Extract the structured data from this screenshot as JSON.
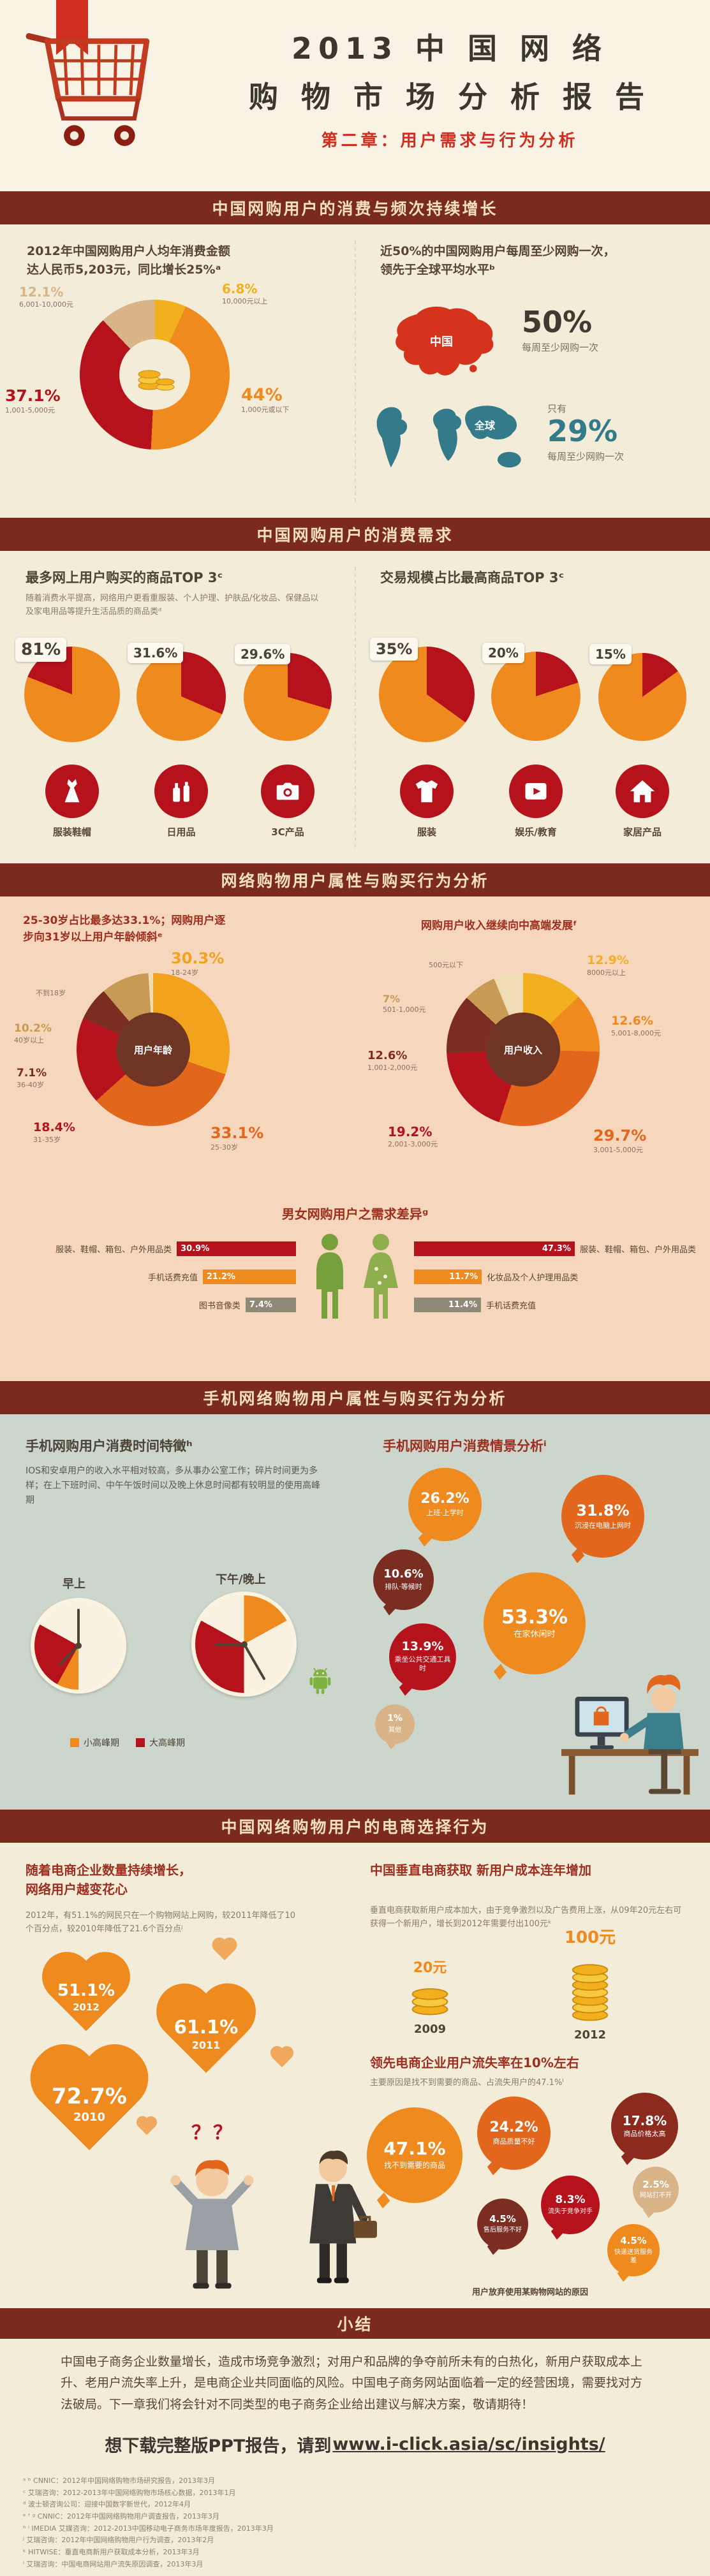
{
  "header": {
    "title_line1": "2013 中 国 网 络",
    "title_line2": "购 物 市 场 分 析 报 告",
    "subtitle": "第二章：用户需求与行为分析"
  },
  "palette": {
    "banner_bg": "#7b2b1e",
    "banner_text": "#f3e0bc",
    "orange": "#ef8a1f",
    "rust": "#e2671d",
    "red": "#b5121b",
    "maroon": "#8c2a1e",
    "dark_maroon": "#7c2d21",
    "tan": "#d8b488",
    "yellow": "#f2b01e",
    "teal": "#337a8a",
    "green": "#76a03c",
    "cream": "#f2ecd9",
    "salmon": "#f6d7bd",
    "gray_teal": "#ccd6cd"
  },
  "s1": {
    "banner": "中国网购用户的消费与频次持续增长",
    "spend": {
      "headline": "2012年中国网购用户人均年消费金额\n达人民币5,203元，同比增长25%ᵃ",
      "segments": [
        {
          "pct": "6.8%",
          "label": "10,000元以上",
          "value": 6.8,
          "color": "#f2b01e"
        },
        {
          "pct": "44%",
          "label": "1,000元或以下",
          "value": 44,
          "color": "#ef8a1f"
        },
        {
          "pct": "37.1%",
          "label": "1,001-5,000元",
          "value": 37.1,
          "color": "#b5121b"
        },
        {
          "pct": "12.1%",
          "label": "6,001-10,000元",
          "value": 12.1,
          "color": "#d8b488"
        }
      ]
    },
    "freq": {
      "headline": "近50%的中国网购用户每周至少网购一次，\n领先于全球平均水平ᵇ",
      "china": {
        "label": "中国",
        "stat": "50%",
        "desc": "每周至少网购一次"
      },
      "global": {
        "label": "全球",
        "prefix": "只有",
        "stat": "29%",
        "desc": "每周至少网购一次"
      }
    }
  },
  "s2": {
    "banner": "中国网购用户的消费需求",
    "left": {
      "title": "最多网上用户购买的商品TOP 3ᶜ",
      "note": "随着消费水平提高，网络用户更看重服装、个人护理、护肤品/化妆品、保健品以及家电用品等提升生活品质的商品类ᵈ",
      "items": [
        {
          "pct": "81%",
          "label": "服装鞋帽",
          "segments": [
            {
              "value": 81,
              "color": "#ef8a1f"
            },
            {
              "value": 19,
              "color": "#b5121b"
            }
          ]
        },
        {
          "pct": "31.6%",
          "label": "日用品",
          "segments": [
            {
              "value": 31.6,
              "color": "#b5121b"
            },
            {
              "value": 68.4,
              "color": "#ef8a1f"
            }
          ]
        },
        {
          "pct": "29.6%",
          "label": "3C产品",
          "segments": [
            {
              "value": 29.6,
              "color": "#b5121b"
            },
            {
              "value": 70.4,
              "color": "#ef8a1f"
            }
          ]
        }
      ]
    },
    "right": {
      "title": "交易规模占比最高商品TOP 3ᶜ",
      "items": [
        {
          "pct": "35%",
          "label": "服装",
          "segments": [
            {
              "value": 35,
              "color": "#b5121b"
            },
            {
              "value": 65,
              "color": "#ef8a1f"
            }
          ]
        },
        {
          "pct": "20%",
          "label": "娱乐/教育",
          "segments": [
            {
              "value": 20,
              "color": "#b5121b"
            },
            {
              "value": 80,
              "color": "#ef8a1f"
            }
          ]
        },
        {
          "pct": "15%",
          "label": "家居产品",
          "segments": [
            {
              "value": 15,
              "color": "#b5121b"
            },
            {
              "value": 85,
              "color": "#ef8a1f"
            }
          ]
        }
      ]
    }
  },
  "s3": {
    "banner": "网络购物用户属性与购买行为分析",
    "age": {
      "headline": "25-30岁占比最多达33.1%；网购用户逐\n步向31岁以上用户年龄倾斜ᵉ",
      "center": "用户年龄",
      "segments": [
        {
          "pct": "30.3%",
          "label": "18-24岁",
          "value": 30.3,
          "color": "#f2a21d"
        },
        {
          "pct": "33.1%",
          "label": "25-30岁",
          "value": 33.1,
          "color": "#e2671d"
        },
        {
          "pct": "18.4%",
          "label": "31-35岁",
          "value": 18.4,
          "color": "#b5121b"
        },
        {
          "pct": "7.1%",
          "label": "36-40岁",
          "value": 7.1,
          "color": "#7c2d21"
        },
        {
          "pct": "10.2%",
          "label": "40岁以上",
          "value": 10.2,
          "color": "#c79a56"
        },
        {
          "pct": "1%",
          "label": "不到18岁",
          "value": 1,
          "color": "#f0dcb4"
        }
      ]
    },
    "income": {
      "headline": "网购用户收入继续向中高端发展ᶠ",
      "center": "用户收入",
      "segments": [
        {
          "pct": "12.9%",
          "label": "8000元以上",
          "value": 12.9,
          "color": "#f2b01e"
        },
        {
          "pct": "12.6%",
          "label": "5,001-8,000元",
          "value": 12.6,
          "color": "#ef8a1f"
        },
        {
          "pct": "29.7%",
          "label": "3,001-5,000元",
          "value": 29.7,
          "color": "#e2671d"
        },
        {
          "pct": "19.2%",
          "label": "2,001-3,000元",
          "value": 19.2,
          "color": "#b5121b"
        },
        {
          "pct": "12.6%",
          "label": "1,001-2,000元",
          "value": 12.6,
          "color": "#7c2d21"
        },
        {
          "pct": "7%",
          "label": "501-1,000元",
          "value": 7,
          "color": "#c79a56"
        },
        {
          "pct": "6.2%",
          "label": "500元以下",
          "value": 6.2,
          "color": "#f0dcb4"
        }
      ]
    },
    "gender": {
      "title": "男女网购用户之需求差异ᵍ",
      "male": [
        {
          "label": "服装、鞋帽、箱包、户外用品类",
          "pct": "30.9%",
          "value": 30.9,
          "color": "#b5121b"
        },
        {
          "label": "手机话费充值",
          "pct": "21.2%",
          "value": 21.2,
          "color": "#ef8a1f"
        },
        {
          "label": "图书音像类",
          "pct": "7.4%",
          "value": 7.4,
          "color": "#8f8a77"
        }
      ],
      "female": [
        {
          "label": "服装、鞋帽、箱包、户外用品类",
          "pct": "47.3%",
          "value": 47.3,
          "color": "#b5121b"
        },
        {
          "label": "化妆品及个人护理用品类",
          "pct": "11.7%",
          "value": 11.7,
          "color": "#ef8a1f"
        },
        {
          "label": "手机话费充值",
          "pct": "11.4%",
          "value": 11.4,
          "color": "#8f8a77"
        }
      ]
    }
  },
  "s4": {
    "banner": "手机网络购物用户属性与购买行为分析",
    "time": {
      "title": "手机网购用户消费时间特徵ʰ",
      "note": "IOS和安卓用户的收入水平相对较高，多从事办公室工作；碎片时间更为多样；在上下班时间、中午午饭时间以及晚上休息时间都有较明显的使用高峰期",
      "clock1": {
        "label": "早上",
        "segments": [
          {
            "value": 50,
            "color": "#f8f1df"
          },
          {
            "value": 8,
            "color": "#ef8a1f"
          },
          {
            "value": 25,
            "color": "#b5121b"
          },
          {
            "value": 17,
            "color": "#f8f1df"
          }
        ]
      },
      "clock2": {
        "label": "下午/晚上",
        "segments": [
          {
            "value": 17,
            "color": "#ef8a1f"
          },
          {
            "value": 33,
            "color": "#f8f1df"
          },
          {
            "value": 33,
            "color": "#b5121b"
          },
          {
            "value": 17,
            "color": "#f8f1df"
          }
        ]
      },
      "legend": [
        {
          "label": "小高峰期",
          "color": "#ef8a1f"
        },
        {
          "label": "大高峰期",
          "color": "#b5121b"
        }
      ]
    },
    "scenario": {
      "title": "手机网购用户消费情景分析ⁱ",
      "bubbles": [
        {
          "pct": "26.2%",
          "label": "上班·上学时"
        },
        {
          "pct": "10.6%",
          "label": "排队·等候时"
        },
        {
          "pct": "31.8%",
          "label": "沉浸在电脑上网时"
        },
        {
          "pct": "13.9%",
          "label": "乘坐公共交通工具时"
        },
        {
          "pct": "53.3%",
          "label": "在家休闲时"
        },
        {
          "pct": "1%",
          "label": "其他"
        }
      ]
    }
  },
  "s5": {
    "banner": "中国网络购物用户的电商选择行为",
    "loyalty": {
      "title": "随着电商企业数量持续增长，\n网络用户越变花心",
      "note": "2012年，有51.1%的网民只在一个购物网站上网购，较2011年降低了10个百分点，较2010年降低了21.6个百分点ʲ",
      "question_marks": "？？",
      "hearts": [
        {
          "pct": "51.1%",
          "year": "2012"
        },
        {
          "pct": "61.1%",
          "year": "2011"
        },
        {
          "pct": "72.7%",
          "year": "2010"
        }
      ]
    },
    "cost": {
      "title": "中国垂直电商获取\n新用户成本连年增加",
      "note": "垂直电商获取新用户成本加大，由于竞争激烈以及广告费用上涨，从09年20元左右可获得一个新用户，增长到2012年需要付出100元ᵏ",
      "items": [
        {
          "amount": "20元",
          "year": "2009"
        },
        {
          "amount": "100元",
          "year": "2012"
        }
      ]
    },
    "churn": {
      "title": "领先电商企业用户流失率在10%左右",
      "note": "主要原因是找不到需要的商品、占流失用户的47.1%ˡ",
      "caption": "用户放弃使用某购物网站的原因",
      "bubbles": [
        {
          "pct": "24.2%",
          "label": "商品质量不好"
        },
        {
          "pct": "17.8%",
          "label": "商品价格太高"
        },
        {
          "pct": "47.1%",
          "label": "找不到需要的商品"
        },
        {
          "pct": "8.3%",
          "label": "流失于竞争对手"
        },
        {
          "pct": "2.5%",
          "label": "网站打不开"
        },
        {
          "pct": "4.5%",
          "label": "售后服务不好"
        },
        {
          "pct": "4.5%",
          "label": "快递送货服务差"
        }
      ]
    }
  },
  "summary": {
    "banner": "小结",
    "text": "中国电子商务企业数量增长，造成市场竞争激烈；对用户和品牌的争夺前所未有的白热化，新用户获取成本上升、老用户流失率上升，是电商企业共同面临的风险。中国电子商务网站面临着一定的经营困境，需要找对方法破局。下一章我们将会针对不同类型的电子商务企业给出建议与解决方案，敬请期待！"
  },
  "footer": {
    "cta_prefix": "想下载完整版PPT报告，请到",
    "cta_link": "www.i-click.asia/sc/insights/",
    "notes": [
      "ᵃ ᵇ CNNIC：2012年中国网络购物市场研究报告，2013年3月",
      "ᶜ 艾瑞咨询：2012-2013年中国网络购物市场核心数据，2013年1月",
      "ᵈ 波士顿咨询公司：迎接中国数字新世代，2012年4月",
      "ᵉ ᶠ ᵍ CNNIC：2012年中国网络购物用户调查报告，2013年3月",
      "ʰ ⁱ IMEDIA 艾媒咨询：2012-2013中国移动电子商务市场年度报告，2013年3月",
      "ʲ 艾瑞咨询：2012年中国网络购物用户行为调查，2013年2月",
      "ᵏ HITWISE：垂直电商新用户获取成本分析，2013年3月",
      "ˡ 艾瑞咨询：中国电商网站用户流失原因调查，2013年3月"
    ]
  },
  "chart_data": [
    {
      "type": "pie",
      "title": "2012年网购用户人均年消费金额分布",
      "labels": [
        "1,000元或以下",
        "1,001-5,000元",
        "6,001-10,000元",
        "10,000元以上"
      ],
      "values": [
        44,
        37.1,
        12.1,
        6.8
      ]
    },
    {
      "type": "bar",
      "title": "每周至少网购一次的用户比例",
      "categories": [
        "中国",
        "全球"
      ],
      "values": [
        50,
        29
      ]
    },
    {
      "type": "bar",
      "title": "最多网上用户购买的商品TOP 3",
      "categories": [
        "服装鞋帽",
        "日用品",
        "3C产品"
      ],
      "values": [
        81,
        31.6,
        29.6
      ]
    },
    {
      "type": "bar",
      "title": "交易规模占比最高商品TOP 3",
      "categories": [
        "服装",
        "娱乐/教育",
        "家居产品"
      ],
      "values": [
        35,
        20,
        15
      ]
    },
    {
      "type": "pie",
      "title": "用户年龄",
      "labels": [
        "不到18岁",
        "18-24岁",
        "25-30岁",
        "31-35岁",
        "36-40岁",
        "40岁以上"
      ],
      "values": [
        1,
        30.3,
        33.1,
        18.4,
        7.1,
        10.2
      ]
    },
    {
      "type": "pie",
      "title": "用户收入",
      "labels": [
        "500元以下",
        "501-1,000元",
        "1,001-2,000元",
        "2,001-3,000元",
        "3,001-5,000元",
        "5,001-8,000元",
        "8000元以上"
      ],
      "values": [
        6.2,
        7,
        12.6,
        19.2,
        29.7,
        12.6,
        12.9
      ]
    },
    {
      "type": "bar",
      "title": "男性网购需求",
      "categories": [
        "服装、鞋帽、箱包、户外用品类",
        "手机话费充值",
        "图书音像类"
      ],
      "values": [
        30.9,
        21.2,
        7.4
      ]
    },
    {
      "type": "bar",
      "title": "女性网购需求",
      "categories": [
        "服装、鞋帽、箱包、户外用品类",
        "化妆品及个人护理用品类",
        "手机话费充值"
      ],
      "values": [
        47.3,
        11.7,
        11.4
      ]
    },
    {
      "type": "bar",
      "title": "手机网购用户消费情景分析",
      "categories": [
        "上班·上学时",
        "排队·等候时",
        "沉浸在电脑上网时",
        "乘坐公共交通工具时",
        "在家休闲时",
        "其他"
      ],
      "values": [
        26.2,
        10.6,
        31.8,
        13.9,
        53.3,
        1
      ]
    },
    {
      "type": "bar",
      "title": "只在一个购物网站网购的网民比例",
      "categories": [
        "2010",
        "2011",
        "2012"
      ],
      "values": [
        72.7,
        61.1,
        51.1
      ]
    },
    {
      "type": "bar",
      "title": "垂直电商获取新用户成本（元）",
      "categories": [
        "2009",
        "2012"
      ],
      "values": [
        20,
        100
      ]
    },
    {
      "type": "bar",
      "title": "用户放弃使用某购物网站的原因",
      "categories": [
        "找不到需要的商品",
        "商品质量不好",
        "商品价格太高",
        "流失于竞争对手",
        "售后服务不好",
        "快递送货服务差",
        "网站打不开"
      ],
      "values": [
        47.1,
        24.2,
        17.8,
        8.3,
        4.5,
        4.5,
        2.5
      ]
    }
  ]
}
